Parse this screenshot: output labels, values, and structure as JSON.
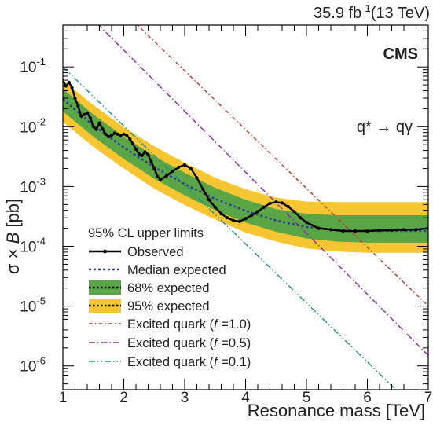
{
  "header": {
    "lumi": "35.9 fb",
    "lumi_exp": "-1",
    "energy": "(13 TeV)",
    "experiment": "CMS",
    "process_prefix": "q* ",
    "process_suffix": " qγ"
  },
  "chart_data": {
    "type": "line",
    "xlabel": "Resonance mass [TeV]",
    "ylabel_parts": [
      "σ × ",
      "B",
      " [pb]"
    ],
    "xlim": [
      1,
      7
    ],
    "ylim": [
      4e-07,
      0.5
    ],
    "yscale": "log",
    "x_ticks": [
      1,
      2,
      3,
      4,
      5,
      6,
      7
    ],
    "y_ticks": [
      {
        "value": 1e-06,
        "base": "10",
        "exp": "-6"
      },
      {
        "value": 1e-05,
        "base": "10",
        "exp": "-5"
      },
      {
        "value": 0.0001,
        "base": "10",
        "exp": "-4"
      },
      {
        "value": 0.001,
        "base": "10",
        "exp": "-3"
      },
      {
        "value": 0.01,
        "base": "10",
        "exp": "-2"
      },
      {
        "value": 0.1,
        "base": "10",
        "exp": "-1"
      }
    ],
    "legend": {
      "title": "95% CL upper limits",
      "entries": [
        {
          "key": "observed",
          "label": "Observed"
        },
        {
          "key": "median",
          "label": "Median expected"
        },
        {
          "key": "band68",
          "label": "68% expected"
        },
        {
          "key": "band95",
          "label": "95% expected"
        },
        {
          "key": "f10",
          "label_parts": [
            "Excited quark (",
            "f",
            " =1.0)"
          ]
        },
        {
          "key": "f05",
          "label_parts": [
            "Excited quark (",
            "f",
            " =0.5)"
          ]
        },
        {
          "key": "f01",
          "label_parts": [
            "Excited quark (",
            "f",
            " =0.1)"
          ]
        }
      ]
    },
    "colors": {
      "observed": "#000000",
      "median": "#2b3e9e",
      "band68": "#5aa646",
      "band95": "#f5c532",
      "f10": "#c0392b",
      "f05": "#8e2aa6",
      "f01": "#1f8e8a"
    },
    "observed": {
      "x": [
        1.0,
        1.05,
        1.1,
        1.15,
        1.2,
        1.25,
        1.3,
        1.35,
        1.4,
        1.45,
        1.5,
        1.55,
        1.6,
        1.65,
        1.7,
        1.75,
        1.8,
        1.85,
        1.9,
        1.95,
        2.0,
        2.05,
        2.1,
        2.15,
        2.2,
        2.25,
        2.3,
        2.35,
        2.4,
        2.45,
        2.5,
        2.55,
        2.6,
        2.7,
        2.8,
        2.9,
        3.0,
        3.1,
        3.2,
        3.3,
        3.4,
        3.5,
        3.6,
        3.7,
        3.8,
        3.9,
        4.0,
        4.1,
        4.2,
        4.3,
        4.4,
        4.5,
        4.6,
        4.7,
        4.8,
        4.9,
        5.0,
        5.2,
        5.4,
        5.6,
        5.8,
        6.0,
        6.2,
        6.4,
        6.6,
        6.8,
        7.0
      ],
      "y": [
        0.06,
        0.048,
        0.055,
        0.045,
        0.03,
        0.022,
        0.015,
        0.016,
        0.017,
        0.014,
        0.01,
        0.009,
        0.0115,
        0.0092,
        0.0075,
        0.0068,
        0.0072,
        0.0078,
        0.0075,
        0.0072,
        0.0075,
        0.0071,
        0.0062,
        0.0052,
        0.0042,
        0.0035,
        0.0033,
        0.0038,
        0.0034,
        0.0026,
        0.002,
        0.0015,
        0.0013,
        0.0015,
        0.0018,
        0.0021,
        0.0023,
        0.002,
        0.0014,
        0.0009,
        0.0006,
        0.00045,
        0.00035,
        0.0003,
        0.00027,
        0.00026,
        0.00029,
        0.00033,
        0.00038,
        0.00045,
        0.00052,
        0.00055,
        0.00053,
        0.00046,
        0.00038,
        0.0003,
        0.00025,
        0.0002,
        0.00019,
        0.00018,
        0.00018,
        0.00018,
        0.000185,
        0.000185,
        0.00019,
        0.00019,
        0.0002
      ]
    },
    "expected": {
      "x": [
        1.0,
        1.5,
        2.0,
        2.5,
        3.0,
        3.5,
        4.0,
        4.5,
        5.0,
        5.5,
        6.0,
        6.5,
        7.0
      ],
      "median": [
        0.029,
        0.0105,
        0.0045,
        0.0021,
        0.0011,
        0.00062,
        0.00039,
        0.00027,
        0.00021,
        0.00019,
        0.00018,
        0.00018,
        0.00018
      ],
      "lo68": [
        0.018,
        0.0068,
        0.0029,
        0.00135,
        0.00071,
        0.0004,
        0.00025,
        0.000175,
        0.000135,
        0.00012,
        0.000115,
        0.000115,
        0.000115
      ],
      "hi68": [
        0.043,
        0.016,
        0.0068,
        0.0032,
        0.0017,
        0.00095,
        0.0006,
        0.00042,
        0.00035,
        0.00033,
        0.00033,
        0.00033,
        0.00033
      ],
      "lo95": [
        0.012,
        0.0046,
        0.002,
        0.00092,
        0.00049,
        0.00028,
        0.00017,
        0.00012,
        9.2e-05,
        8.2e-05,
        7.8e-05,
        7.8e-05,
        7.8e-05
      ],
      "hi95": [
        0.06,
        0.023,
        0.0098,
        0.0047,
        0.0025,
        0.0014,
        0.0009,
        0.00065,
        0.00056,
        0.00055,
        0.00055,
        0.00055,
        0.00055
      ]
    },
    "theory": [
      {
        "key": "f10",
        "x": [
          1.0,
          7.0
        ],
        "y": [
          8.0,
          1e-05
        ]
      },
      {
        "key": "f05",
        "x": [
          1.0,
          7.0
        ],
        "y": [
          2.0,
          1.5e-06
        ]
      },
      {
        "key": "f01",
        "x": [
          1.0,
          7.0
        ],
        "y": [
          0.1,
          1.2e-07
        ]
      }
    ]
  }
}
